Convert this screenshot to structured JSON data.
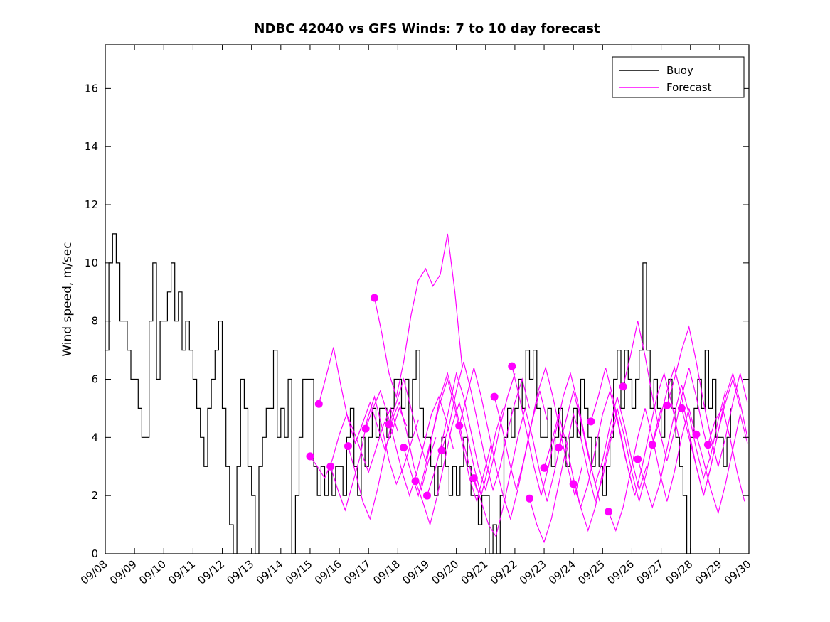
{
  "chart_data": {
    "type": "line",
    "title": "NDBC 42040 vs GFS Winds: 7 to 10 day forecast",
    "xlabel": "",
    "ylabel": "Wind speed, m/sec",
    "x_tick_labels": [
      "09/08",
      "09/09",
      "09/10",
      "09/11",
      "09/12",
      "09/13",
      "09/14",
      "09/15",
      "09/16",
      "09/17",
      "09/18",
      "09/19",
      "09/20",
      "09/21",
      "09/22",
      "09/23",
      "09/24",
      "09/25",
      "09/26",
      "09/27",
      "09/28",
      "09/29",
      "09/30"
    ],
    "yticks": [
      0,
      2,
      4,
      6,
      8,
      10,
      12,
      14,
      16
    ],
    "ylim": [
      0,
      17.5
    ],
    "xlim_days": [
      0,
      22
    ],
    "grid": false,
    "legend": {
      "position": "top-right",
      "entries": [
        {
          "label": "Buoy",
          "color": "#000000"
        },
        {
          "label": "Forecast",
          "color": "#FF00FF"
        }
      ]
    },
    "colors": {
      "buoy": "#000000",
      "forecast": "#FF00FF"
    },
    "series": {
      "buoy": {
        "name": "Buoy",
        "color": "#000000",
        "style": "step",
        "t_start": 0,
        "dt_days": 0.125,
        "values": [
          7,
          10,
          11,
          10,
          8,
          8,
          7,
          6,
          6,
          5,
          4,
          4,
          8,
          10,
          6,
          8,
          8,
          9,
          10,
          8,
          9,
          7,
          8,
          7,
          6,
          5,
          4,
          3,
          5,
          6,
          7,
          8,
          5,
          3,
          1,
          0,
          3,
          6,
          5,
          3,
          2,
          0,
          3,
          4,
          5,
          5,
          7,
          4,
          5,
          4,
          6,
          0,
          2,
          4,
          6,
          6,
          6,
          3,
          2,
          3,
          2,
          3,
          2,
          3,
          3,
          2,
          4,
          5,
          3,
          2,
          4,
          3,
          4,
          5,
          4,
          5,
          5,
          4,
          5,
          6,
          6,
          5,
          6,
          4,
          6,
          7,
          5,
          4,
          4,
          3,
          2,
          3,
          4,
          3,
          2,
          3,
          2,
          3,
          4,
          3,
          2,
          2,
          1,
          2,
          2,
          0,
          1,
          0,
          2,
          4,
          5,
          4,
          5,
          6,
          5,
          7,
          6,
          7,
          5,
          4,
          4,
          5,
          3,
          4,
          5,
          4,
          3,
          4,
          5,
          4,
          6,
          5,
          4,
          3,
          4,
          3,
          2,
          3,
          4,
          6,
          7,
          5,
          7,
          6,
          5,
          6,
          7,
          10,
          7,
          5,
          6,
          5,
          4,
          5,
          6,
          5,
          4,
          3,
          2,
          0,
          4,
          5,
          6,
          5,
          7,
          5,
          6,
          4,
          4,
          3,
          4,
          5
        ]
      },
      "forecast_runs": {
        "name": "Forecast",
        "color": "#FF00FF",
        "dt_days": 0.25,
        "marker": "dot-at-start",
        "runs": [
          {
            "start": 7.0,
            "values": [
              3.35,
              3.0,
              2.6,
              3.2,
              4.1,
              4.8,
              4.2,
              3.5,
              2.8,
              3.6,
              4.4,
              5.0,
              4.2
            ]
          },
          {
            "start": 7.3,
            "values": [
              5.15,
              6.1,
              7.1,
              5.8,
              4.6,
              3.8,
              4.5,
              5.2,
              4.4,
              3.6,
              4.2,
              5.0,
              4.4
            ]
          },
          {
            "start": 7.7,
            "values": [
              3.0,
              2.2,
              1.5,
              2.4,
              3.3,
              4.6,
              5.4,
              4.4,
              3.2,
              2.4,
              3.0,
              3.8,
              4.6
            ]
          },
          {
            "start": 8.3,
            "values": [
              3.7,
              2.8,
              1.8,
              1.2,
              2.2,
              3.4,
              4.6,
              5.2,
              4.2,
              3.0,
              2.2,
              3.2,
              4.0
            ]
          },
          {
            "start": 8.9,
            "values": [
              4.3,
              5.0,
              5.6,
              4.8,
              3.8,
              2.8,
              2.0,
              2.8,
              3.8,
              4.8,
              5.4,
              4.6,
              3.6
            ]
          },
          {
            "start": 9.2,
            "values": [
              8.8,
              7.6,
              6.2,
              5.4,
              6.6,
              8.2,
              9.4,
              9.8,
              9.2,
              9.6,
              11.0,
              9.0,
              6.4
            ]
          },
          {
            "start": 9.7,
            "values": [
              4.45,
              5.2,
              6.0,
              5.0,
              4.0,
              3.2,
              4.2,
              5.4,
              6.2,
              5.2,
              4.0,
              3.0,
              2.2
            ]
          },
          {
            "start": 10.2,
            "values": [
              3.65,
              2.8,
              2.0,
              3.0,
              4.2,
              5.2,
              6.0,
              5.0,
              3.8,
              2.6,
              1.8,
              2.8,
              3.8
            ]
          },
          {
            "start": 10.6,
            "values": [
              2.5,
              1.8,
              1.0,
              2.0,
              3.2,
              4.4,
              5.2,
              4.2,
              3.0,
              2.0,
              3.0,
              4.2,
              5.0
            ]
          },
          {
            "start": 11.0,
            "values": [
              2.0,
              2.8,
              3.8,
              5.0,
              6.2,
              5.4,
              4.2,
              3.0,
              2.2,
              3.2,
              4.4,
              5.4,
              6.2
            ]
          },
          {
            "start": 11.5,
            "values": [
              3.55,
              4.4,
              5.6,
              6.6,
              5.6,
              4.4,
              3.2,
              2.2,
              3.0,
              4.2,
              5.2,
              6.0,
              5.0
            ]
          },
          {
            "start": 12.1,
            "values": [
              4.4,
              5.4,
              6.4,
              5.4,
              4.2,
              3.0,
              2.0,
              1.2,
              2.2,
              3.4,
              4.6,
              5.6,
              4.6
            ]
          },
          {
            "start": 12.6,
            "values": [
              2.6,
              1.8,
              1.0,
              0.6,
              1.6,
              2.8,
              4.0,
              5.0,
              4.0,
              2.8,
              1.8,
              2.8,
              4.0
            ]
          },
          {
            "start": 13.3,
            "values": [
              5.4,
              4.4,
              3.2,
              2.2,
              3.2,
              4.4,
              5.6,
              6.4,
              5.4,
              4.2,
              3.0,
              2.0,
              3.0
            ]
          },
          {
            "start": 13.9,
            "values": [
              6.45,
              5.4,
              4.2,
              3.0,
              2.0,
              3.0,
              4.2,
              5.4,
              6.2,
              5.2,
              4.0,
              2.8,
              1.8
            ]
          },
          {
            "start": 14.5,
            "values": [
              1.9,
              1.0,
              0.4,
              1.2,
              2.4,
              3.6,
              4.8,
              4.0,
              2.8,
              1.8,
              2.6,
              3.8,
              4.8
            ]
          },
          {
            "start": 15.0,
            "values": [
              2.95,
              3.8,
              4.8,
              3.8,
              2.6,
              1.6,
              2.4,
              3.6,
              4.8,
              5.6,
              4.6,
              3.4,
              2.4
            ]
          },
          {
            "start": 15.5,
            "values": [
              3.65,
              4.6,
              5.6,
              4.6,
              3.4,
              2.4,
              3.2,
              4.4,
              5.4,
              4.4,
              3.2,
              2.2,
              3.0
            ]
          },
          {
            "start": 16.0,
            "values": [
              2.4,
              1.6,
              0.8,
              1.6,
              2.8,
              4.0,
              5.0,
              4.0,
              2.8,
              1.8,
              2.8,
              4.0,
              5.0
            ]
          },
          {
            "start": 16.6,
            "values": [
              4.55,
              5.4,
              6.4,
              5.4,
              4.2,
              3.0,
              2.0,
              3.0,
              4.2,
              5.4,
              6.2,
              5.2,
              4.0
            ]
          },
          {
            "start": 17.2,
            "values": [
              1.45,
              0.8,
              1.6,
              2.8,
              4.0,
              5.0,
              4.0,
              2.8,
              1.8,
              2.8,
              4.0,
              5.0,
              4.0
            ]
          },
          {
            "start": 17.7,
            "values": [
              5.75,
              6.8,
              8.0,
              6.8,
              5.4,
              4.2,
              3.2,
              4.2,
              5.4,
              6.4,
              5.4,
              4.2,
              3.2
            ]
          },
          {
            "start": 18.2,
            "values": [
              3.25,
              2.4,
              1.6,
              2.4,
              3.6,
              4.8,
              5.8,
              4.8,
              3.6,
              2.6,
              3.4,
              4.6,
              5.6
            ]
          },
          {
            "start": 18.7,
            "values": [
              3.75,
              4.6,
              5.6,
              6.4,
              5.4,
              4.2,
              3.0,
              2.0,
              3.0,
              4.2,
              5.2,
              6.0,
              5.0
            ]
          },
          {
            "start": 19.2,
            "values": [
              5.1,
              6.0,
              7.0,
              7.8,
              6.6,
              5.2,
              4.0,
              3.0,
              4.0,
              5.2,
              6.2,
              5.2
            ]
          },
          {
            "start": 19.7,
            "values": [
              5.0,
              4.0,
              3.0,
              2.0,
              3.0,
              4.2,
              5.4,
              6.2,
              5.2,
              4.0
            ]
          },
          {
            "start": 20.2,
            "values": [
              4.1,
              3.2,
              2.2,
              1.4,
              2.4,
              3.6,
              4.8,
              3.8
            ]
          },
          {
            "start": 20.6,
            "values": [
              3.75,
              4.6,
              5.0,
              4.0,
              2.8,
              1.8
            ]
          }
        ]
      }
    }
  }
}
